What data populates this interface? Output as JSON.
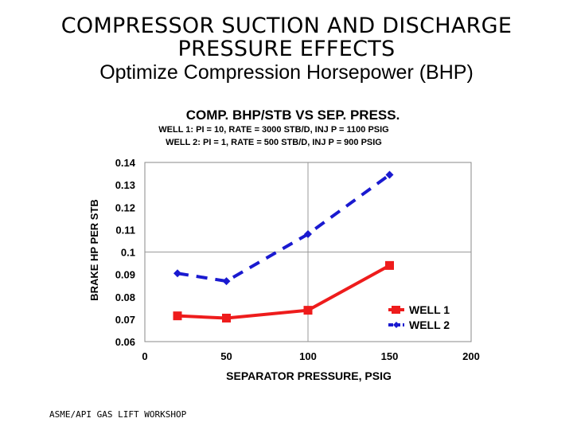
{
  "slide": {
    "title_line1": "COMPRESSOR SUCTION AND DISCHARGE",
    "title_line2": "PRESSURE EFFECTS",
    "subtitle": "Optimize Compression Horsepower (BHP)",
    "footer": "ASME/API GAS LIFT WORKSHOP"
  },
  "chart_data": {
    "type": "line",
    "title": "COMP. BHP/STB VS SEP. PRESS.",
    "subtitle_lines": [
      "WELL 1: PI = 10,  RATE = 3000 STB/D,  INJ P = 1100 PSIG",
      "WELL 2: PI = 1,  RATE = 500 STB/D,  INJ P = 900 PSIG"
    ],
    "xlabel": "SEPARATOR PRESSURE, PSIG",
    "ylabel": "BRAKE HP PER STB",
    "xlim": [
      0,
      200
    ],
    "ylim": [
      0.06,
      0.14
    ],
    "x_ticks": [
      "0",
      "50",
      "100",
      "150",
      "200"
    ],
    "y_ticks": [
      "0.14",
      "0.13",
      "0.12",
      "0.11",
      "0.1",
      "0.09",
      "0.08",
      "0.07",
      "0.06"
    ],
    "grid": "major at x=100 and y=0.1",
    "legend_position": "bottom-right",
    "series": [
      {
        "name": "WELL 1",
        "color": "#ee1c1c",
        "style": "solid",
        "marker": "square",
        "x": [
          20,
          50,
          100,
          150
        ],
        "y": [
          0.0715,
          0.0705,
          0.074,
          0.094
        ]
      },
      {
        "name": "WELL 2",
        "color": "#1a1ad0",
        "style": "dashed",
        "marker": "diamond",
        "x": [
          20,
          50,
          100,
          150
        ],
        "y": [
          0.0905,
          0.087,
          0.108,
          0.1345
        ]
      }
    ]
  }
}
